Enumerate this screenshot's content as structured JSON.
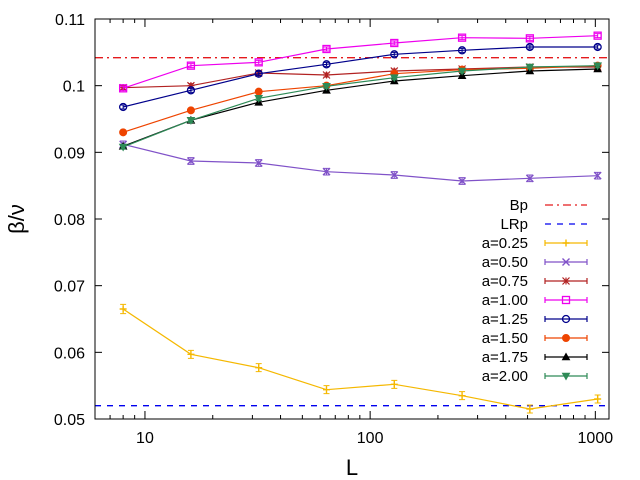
{
  "chart_data": {
    "type": "line",
    "title": "",
    "xlabel": "L",
    "ylabel": "β/ν",
    "xscale": "log",
    "xlim": [
      6,
      1150
    ],
    "ylim": [
      0.05,
      0.11
    ],
    "x_ticks": [
      10,
      100,
      1000
    ],
    "x_tick_labels": [
      "10",
      "100",
      "1000"
    ],
    "y_ticks": [
      0.05,
      0.06,
      0.07,
      0.08,
      0.09,
      0.1,
      0.11
    ],
    "y_tick_labels": [
      "0.05",
      "0.06",
      "0.07",
      "0.08",
      "0.09",
      "0.1",
      "0.11"
    ],
    "legend_position": "right",
    "reference_lines": [
      {
        "name": "Bp",
        "value": 0.1042,
        "color": "#e41a1c",
        "dash": "dash-dot"
      },
      {
        "name": "LRp",
        "value": 0.052,
        "color": "#0000ee",
        "dash": "dashed"
      }
    ],
    "x": [
      8,
      16,
      32,
      64,
      128,
      256,
      512,
      1024
    ],
    "series": [
      {
        "name": "a=0.25",
        "color": "#f5b800",
        "marker": "plus",
        "values": [
          0.0665,
          0.0597,
          0.0577,
          0.0544,
          0.0552,
          0.0535,
          0.0515,
          0.053
        ],
        "errors": [
          0.0007,
          0.0006,
          0.0006,
          0.0006,
          0.0006,
          0.0006,
          0.0006,
          0.0006
        ]
      },
      {
        "name": "a=0.50",
        "color": "#8052c8",
        "marker": "x",
        "values": [
          0.0912,
          0.0887,
          0.0884,
          0.0871,
          0.0866,
          0.0857,
          0.0861,
          0.0865
        ],
        "errors": [
          0.0005,
          0.0005,
          0.0005,
          0.0005,
          0.0005,
          0.0005,
          0.0005,
          0.0005
        ]
      },
      {
        "name": "a=0.75",
        "color": "#b22222",
        "marker": "star",
        "values": [
          0.0997,
          0.1,
          0.1019,
          0.1016,
          0.1022,
          0.1025,
          0.1028,
          0.1028
        ],
        "errors": [
          0.0003,
          0.0003,
          0.0003,
          0.0003,
          0.0003,
          0.0003,
          0.0003,
          0.0003
        ]
      },
      {
        "name": "a=1.00",
        "color": "#ee00ee",
        "marker": "open-square",
        "values": [
          0.0996,
          0.103,
          0.1035,
          0.1055,
          0.1064,
          0.1072,
          0.1071,
          0.1075
        ],
        "errors": [
          0.0003,
          0.0003,
          0.0003,
          0.0003,
          0.0003,
          0.0003,
          0.0003,
          0.0003
        ]
      },
      {
        "name": "a=1.25",
        "color": "#00008b",
        "marker": "open-circle",
        "values": [
          0.0968,
          0.0993,
          0.1018,
          0.1032,
          0.1047,
          0.1053,
          0.1058,
          0.1058
        ],
        "errors": [
          0.0003,
          0.0003,
          0.0003,
          0.0003,
          0.0003,
          0.0003,
          0.0003,
          0.0003
        ]
      },
      {
        "name": "a=1.50",
        "color": "#ee4400",
        "marker": "filled-circle",
        "values": [
          0.093,
          0.0963,
          0.0991,
          0.1,
          0.1018,
          0.1024,
          0.1026,
          0.103
        ],
        "errors": [
          0.0003,
          0.0003,
          0.0003,
          0.0003,
          0.0003,
          0.0003,
          0.0003,
          0.0003
        ]
      },
      {
        "name": "a=1.75",
        "color": "#000000",
        "marker": "triangle-up",
        "values": [
          0.0909,
          0.0948,
          0.0975,
          0.0993,
          0.1007,
          0.1015,
          0.1022,
          0.1025
        ],
        "errors": [
          0.0003,
          0.0003,
          0.0003,
          0.0003,
          0.0003,
          0.0003,
          0.0003,
          0.0003
        ]
      },
      {
        "name": "a=2.00",
        "color": "#2e8b57",
        "marker": "triangle-down",
        "values": [
          0.0908,
          0.0948,
          0.0981,
          0.0999,
          0.1012,
          0.1022,
          0.1028,
          0.103
        ],
        "errors": [
          0.0003,
          0.0003,
          0.0003,
          0.0003,
          0.0003,
          0.0003,
          0.0003,
          0.0003
        ]
      }
    ]
  }
}
